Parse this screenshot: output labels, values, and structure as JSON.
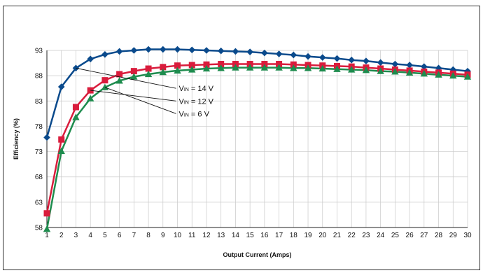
{
  "chart_data": {
    "type": "line",
    "title": "",
    "xlabel": "Output Current (Amps)",
    "ylabel": "Efficiency (%)",
    "x": [
      1,
      2,
      3,
      4,
      5,
      6,
      7,
      8,
      9,
      10,
      11,
      12,
      13,
      14,
      15,
      16,
      17,
      18,
      19,
      20,
      21,
      22,
      23,
      24,
      25,
      26,
      27,
      28,
      29,
      30
    ],
    "xlim": [
      1,
      30
    ],
    "ylim": [
      58,
      93
    ],
    "yticks": [
      58,
      63,
      68,
      73,
      78,
      83,
      88,
      93
    ],
    "grid": true,
    "series": [
      {
        "name": "VIN = 14 V",
        "label_main": "V",
        "label_sub": "IN",
        "label_rest": " = 14 V",
        "color": "#0a4a8c",
        "marker": "diamond",
        "values": [
          75.8,
          85.8,
          89.5,
          91.3,
          92.2,
          92.8,
          93.0,
          93.2,
          93.2,
          93.2,
          93.1,
          93.0,
          92.9,
          92.8,
          92.7,
          92.5,
          92.3,
          92.1,
          91.8,
          91.6,
          91.4,
          91.1,
          90.9,
          90.6,
          90.3,
          90.1,
          89.8,
          89.5,
          89.2,
          88.9
        ]
      },
      {
        "name": "VIN = 12 V",
        "label_main": "V",
        "label_sub": "IN",
        "label_rest": " = 12 V",
        "color": "#d91c3c",
        "marker": "square",
        "values": [
          60.8,
          75.4,
          81.8,
          85.1,
          87.1,
          88.3,
          88.9,
          89.4,
          89.7,
          90.0,
          90.1,
          90.2,
          90.3,
          90.3,
          90.3,
          90.3,
          90.3,
          90.2,
          90.1,
          90.0,
          89.9,
          89.8,
          89.6,
          89.4,
          89.2,
          89.0,
          88.8,
          88.6,
          88.4,
          88.2
        ]
      },
      {
        "name": "VIN = 6 V",
        "label_main": "V",
        "label_sub": "IN",
        "label_rest": " = 6 V",
        "color": "#1e8c4e",
        "marker": "triangle",
        "values": [
          57.7,
          73.1,
          79.8,
          83.5,
          85.7,
          87.0,
          87.8,
          88.3,
          88.7,
          89.0,
          89.2,
          89.4,
          89.5,
          89.6,
          89.6,
          89.6,
          89.6,
          89.5,
          89.5,
          89.4,
          89.3,
          89.2,
          89.1,
          88.9,
          88.8,
          88.6,
          88.4,
          88.2,
          88.0,
          87.8
        ]
      }
    ],
    "annotations": [
      {
        "series": 0,
        "x": 3,
        "label_x": 10,
        "label_y": 85.5
      },
      {
        "series": 1,
        "x": 4,
        "label_x": 10,
        "label_y": 83.0
      },
      {
        "series": 2,
        "x": 5,
        "label_x": 10,
        "label_y": 80.5
      }
    ]
  }
}
